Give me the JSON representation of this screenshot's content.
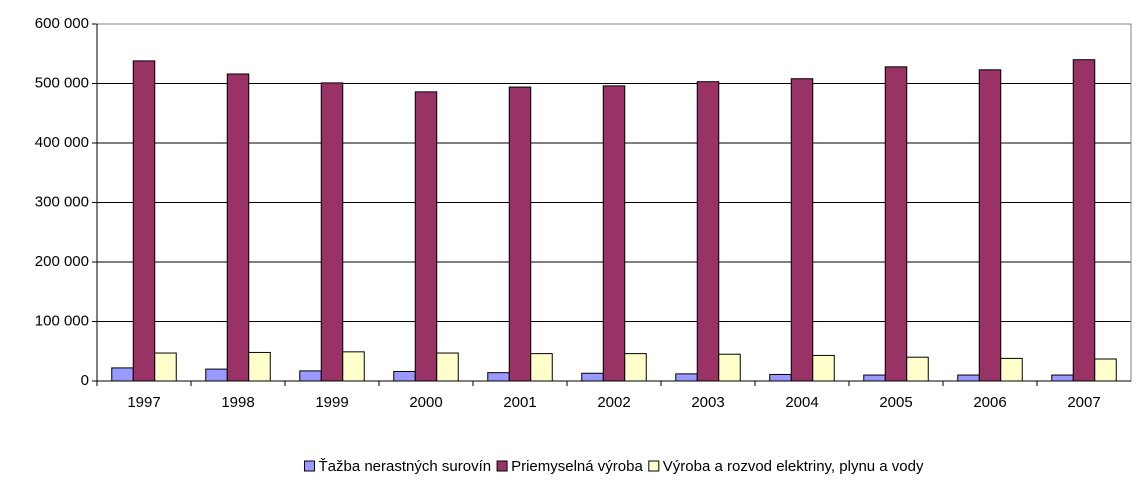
{
  "chart_data": {
    "type": "bar",
    "categories": [
      "1997",
      "1998",
      "1999",
      "2000",
      "2001",
      "2002",
      "2003",
      "2004",
      "2005",
      "2006",
      "2007"
    ],
    "series": [
      {
        "name": "Ťažba nerastných surovín",
        "color": "#9999ff",
        "values": [
          22000,
          20000,
          17000,
          16000,
          14000,
          13000,
          12000,
          11000,
          10000,
          10000,
          10000
        ]
      },
      {
        "name": "Priemyselná výroba",
        "color": "#993366",
        "values": [
          538000,
          516000,
          501000,
          486000,
          494000,
          496000,
          503000,
          508000,
          528000,
          523000,
          540000
        ]
      },
      {
        "name": "Výroba a rozvod elektriny, plynu a vody",
        "color": "#ffffcc",
        "values": [
          47000,
          48000,
          49000,
          47000,
          46000,
          46000,
          45000,
          43000,
          40000,
          38000,
          37000
        ]
      }
    ],
    "ylim": [
      0,
      600000
    ],
    "yticks": [
      0,
      {
        "value": 100000,
        "label": "100 000"
      },
      {
        "value": 200000,
        "label": "200 000"
      },
      {
        "value": 300000,
        "label": "300 000"
      },
      {
        "value": 400000,
        "label": "400 000"
      },
      {
        "value": 500000,
        "label": "500 000"
      },
      {
        "value": 600000,
        "label": "600 000"
      }
    ],
    "grid": true,
    "legend": "bottom"
  }
}
